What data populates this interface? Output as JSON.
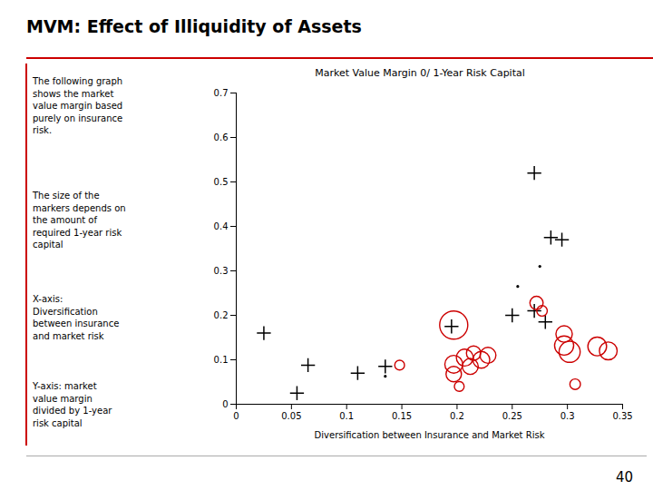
{
  "chart_data": {
    "type": "scatter",
    "title": "MVM:  Effect of Illiquidity of Assets",
    "subtitle": "Market Value Margin 0/ 1-Year Risk Capital",
    "xlabel": "Diversification between Insurance and Market Risk",
    "annotations": [
      "The following graph\nshows the market\nvalue margin based\npurely on insurance\nrisk.",
      "The size of the\nmarkers depends on\nthe amount of\nrequired 1-year risk\ncapital",
      "X-axis:\nDiversification\nbetween insurance\nand market risk",
      "Y-axis: market\nvalue margin\ndivided by 1-year\nrisk capital"
    ],
    "footer": "40",
    "xlim": [
      0,
      0.35
    ],
    "ylim": [
      0,
      0.7
    ],
    "xticks": [
      0,
      0.05,
      0.1,
      0.15,
      0.2,
      0.25,
      0.3,
      0.35
    ],
    "yticks": [
      0,
      0.1,
      0.2,
      0.3,
      0.4,
      0.5,
      0.6,
      0.7
    ],
    "grid": false,
    "series": [
      {
        "marker": "point",
        "color": "#000000",
        "x": [
          0.135,
          0.255,
          0.275
        ],
        "y": [
          0.063,
          0.265,
          0.31
        ]
      },
      {
        "marker": "plus",
        "color": "#000000",
        "x": [
          0.025,
          0.055,
          0.065,
          0.11,
          0.135,
          0.195,
          0.25,
          0.27,
          0.28,
          0.27,
          0.285,
          0.295
        ],
        "y": [
          0.16,
          0.025,
          0.088,
          0.07,
          0.085,
          0.175,
          0.2,
          0.21,
          0.185,
          0.52,
          0.375,
          0.37
        ]
      },
      {
        "marker": "circle",
        "color": "#cc0000",
        "x": [
          0.148,
          0.197,
          0.197,
          0.197,
          0.202,
          0.207,
          0.212,
          0.215,
          0.222,
          0.228,
          0.272,
          0.277,
          0.297,
          0.297,
          0.302,
          0.307,
          0.327,
          0.337
        ],
        "y": [
          0.088,
          0.178,
          0.09,
          0.068,
          0.04,
          0.105,
          0.085,
          0.115,
          0.1,
          0.11,
          0.228,
          0.21,
          0.158,
          0.132,
          0.118,
          0.045,
          0.13,
          0.12
        ],
        "sizes": [
          60,
          500,
          200,
          150,
          60,
          180,
          160,
          130,
          180,
          160,
          110,
          70,
          170,
          230,
          280,
          70,
          220,
          200
        ]
      }
    ]
  }
}
